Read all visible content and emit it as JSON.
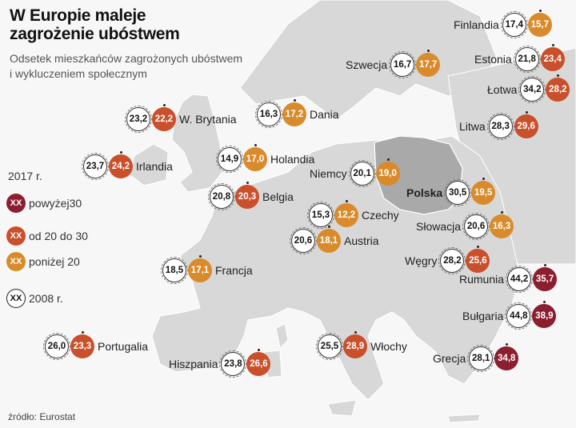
{
  "title_line1": "W Europie maleje",
  "title_line2": "zagrożenie ubóstwem",
  "subtitle_line1": "Odsetek mieszkańców zagrożonych ubóstwem",
  "subtitle_line2": "i wykluczeniem społecznym",
  "source": "źródło: Eurostat",
  "legend": {
    "year_2017": "2017 r.",
    "items": [
      {
        "badge": "XX",
        "label": "powyżej30",
        "color": "#8b1e2f"
      },
      {
        "badge": "XX",
        "label": "od 20 do 30",
        "color": "#c9502b"
      },
      {
        "badge": "XX",
        "label": "poniżej 20",
        "color": "#d98b2b"
      },
      {
        "badge": "XX",
        "label": "2008 r.",
        "color": "#ffffff"
      }
    ]
  },
  "colors": {
    "high": "#8b1e2f",
    "mid": "#c9502b",
    "low": "#d98b2b",
    "sea": "#f7f7f7",
    "land": "#d8d8d8",
    "poland": "#a9a9a9"
  },
  "countries": [
    {
      "name": "Finlandia",
      "v2008": "17,4",
      "v2017": "15,7",
      "bold": false
    },
    {
      "name": "Szwecja",
      "v2008": "16,7",
      "v2017": "17,7",
      "bold": false
    },
    {
      "name": "Estonia",
      "v2008": "21,8",
      "v2017": "23,4",
      "bold": false
    },
    {
      "name": "Łotwa",
      "v2008": "34,2",
      "v2017": "28,2",
      "bold": false
    },
    {
      "name": "W. Brytania",
      "v2008": "23,2",
      "v2017": "22,2",
      "bold": false
    },
    {
      "name": "Dania",
      "v2008": "16,3",
      "v2017": "17,2",
      "bold": false
    },
    {
      "name": "Litwa",
      "v2008": "28,3",
      "v2017": "29,6",
      "bold": false
    },
    {
      "name": "Irlandia",
      "v2008": "23,7",
      "v2017": "24,2",
      "bold": false
    },
    {
      "name": "Holandia",
      "v2008": "14,9",
      "v2017": "17,0",
      "bold": false
    },
    {
      "name": "Niemcy",
      "v2008": "20,1",
      "v2017": "19,0",
      "bold": false
    },
    {
      "name": "Belgia",
      "v2008": "20,8",
      "v2017": "20,3",
      "bold": false
    },
    {
      "name": "Polska",
      "v2008": "30,5",
      "v2017": "19,5",
      "bold": true
    },
    {
      "name": "Czechy",
      "v2008": "15,3",
      "v2017": "12,2",
      "bold": false
    },
    {
      "name": "Słowacja",
      "v2008": "20,6",
      "v2017": "16,3",
      "bold": false
    },
    {
      "name": "Austria",
      "v2008": "20,6",
      "v2017": "18,1",
      "bold": false
    },
    {
      "name": "Węgry",
      "v2008": "28,2",
      "v2017": "25,6",
      "bold": false
    },
    {
      "name": "Francja",
      "v2008": "18,5",
      "v2017": "17,1",
      "bold": false
    },
    {
      "name": "Rumunia",
      "v2008": "44,2",
      "v2017": "35,7",
      "bold": false
    },
    {
      "name": "Bułgaria",
      "v2008": "44,8",
      "v2017": "38,9",
      "bold": false
    },
    {
      "name": "Portugalia",
      "v2008": "26,0",
      "v2017": "23,3",
      "bold": false
    },
    {
      "name": "Włochy",
      "v2008": "25,5",
      "v2017": "28,9",
      "bold": false
    },
    {
      "name": "Hiszpania",
      "v2008": "23,8",
      "v2017": "26,6",
      "bold": false
    },
    {
      "name": "Grecja",
      "v2008": "28,1",
      "v2017": "34,8",
      "bold": false
    }
  ]
}
